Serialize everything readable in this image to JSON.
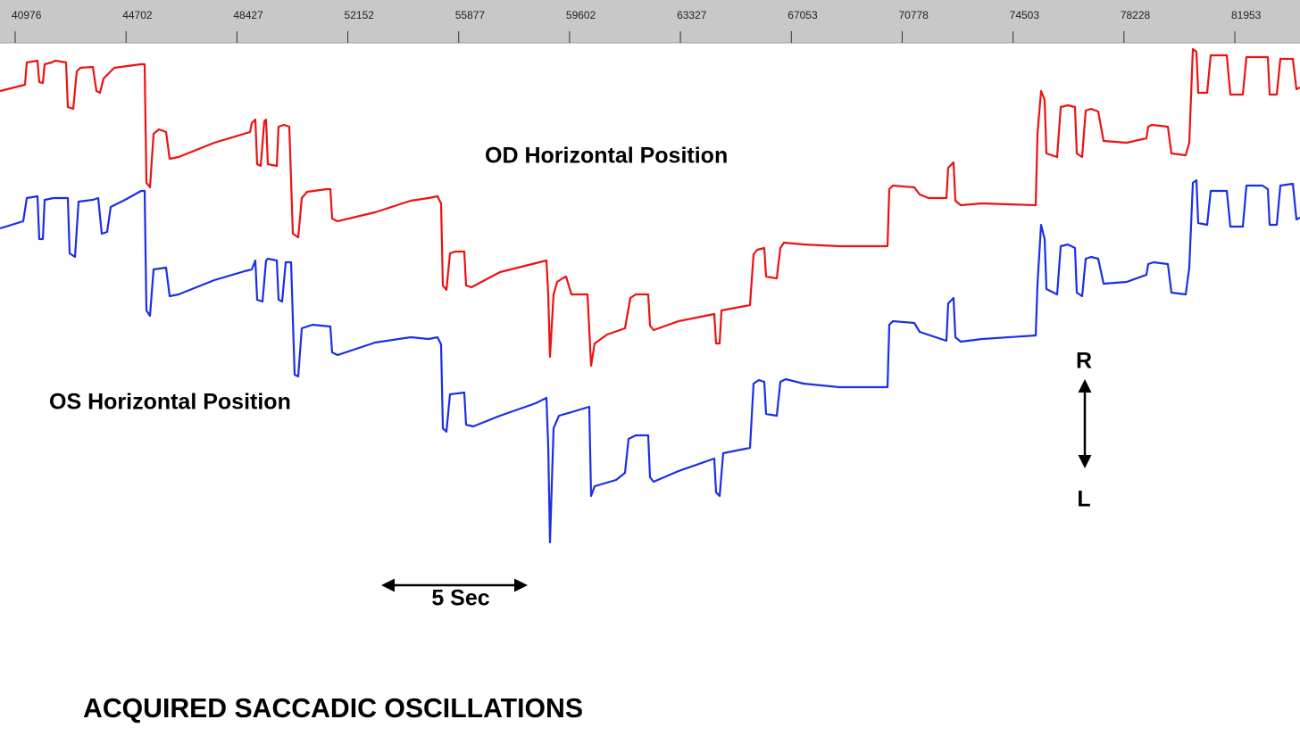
{
  "chart_data": {
    "type": "line",
    "title": "ACQUIRED SACCADIC OSCILLATIONS",
    "xlim": [
      40466,
      84143
    ],
    "xticks": [
      40976,
      44702,
      48427,
      52152,
      55877,
      59602,
      63327,
      67053,
      70778,
      74503,
      78228,
      81953
    ],
    "annotations": {
      "od": "OD Horizontal Position",
      "os": "OS Horizontal Position",
      "right": "R",
      "left": "L",
      "scale": "5 Sec"
    },
    "series": [
      {
        "name": "OD Horizontal Position",
        "color": "#ee1111"
      },
      {
        "name": "OS Horizontal Position",
        "color": "#1a2ee8"
      }
    ]
  }
}
